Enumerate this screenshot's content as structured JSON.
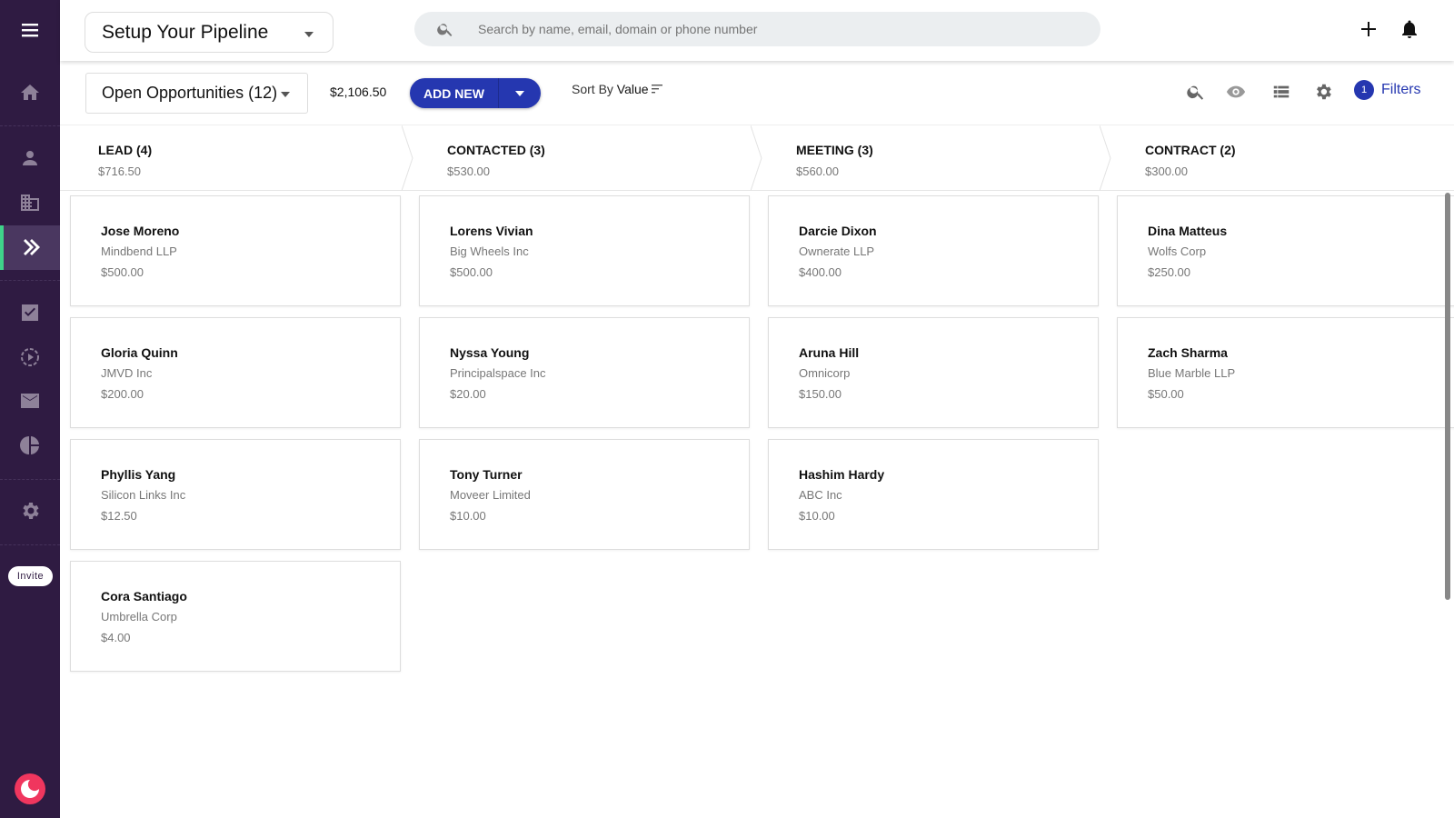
{
  "sidebar": {
    "items": [
      "menu-icon",
      "home-icon",
      "person-icon",
      "building-icon",
      "pipeline-icon",
      "tasks-icon",
      "activity-icon",
      "mail-icon",
      "reports-icon",
      "settings-icon"
    ],
    "active": "pipeline",
    "invite_label": "Invite",
    "accent": "#3fd38a",
    "bg": "#2f1b42"
  },
  "topbar": {
    "pipeline_select": "Setup Your Pipeline",
    "search_placeholder": "Search by name, email, domain or phone number"
  },
  "toolbar": {
    "view_select": "Open Opportunities (12)",
    "total": "$2,106.50",
    "add_new": "ADD NEW",
    "sort_prefix": "Sort By",
    "sort_value": "Value",
    "filter_count": "1",
    "filters_label": "Filters",
    "accent": "#2537b0"
  },
  "columns": [
    {
      "title": "LEAD (4)",
      "total": "$716.50",
      "cards": [
        {
          "name": "Jose Moreno",
          "company": "Mindbend LLP",
          "amount": "$500.00"
        },
        {
          "name": "Gloria Quinn",
          "company": "JMVD Inc",
          "amount": "$200.00"
        },
        {
          "name": "Phyllis Yang",
          "company": "Silicon Links Inc",
          "amount": "$12.50"
        },
        {
          "name": "Cora Santiago",
          "company": "Umbrella Corp",
          "amount": "$4.00"
        }
      ]
    },
    {
      "title": "CONTACTED (3)",
      "total": "$530.00",
      "cards": [
        {
          "name": "Lorens Vivian",
          "company": "Big Wheels Inc",
          "amount": "$500.00"
        },
        {
          "name": "Nyssa Young",
          "company": "Principalspace Inc",
          "amount": "$20.00"
        },
        {
          "name": "Tony Turner",
          "company": "Moveer Limited",
          "amount": "$10.00"
        }
      ]
    },
    {
      "title": "MEETING (3)",
      "total": "$560.00",
      "cards": [
        {
          "name": "Darcie Dixon",
          "company": "Ownerate LLP",
          "amount": "$400.00"
        },
        {
          "name": "Aruna Hill",
          "company": "Omnicorp",
          "amount": "$150.00"
        },
        {
          "name": "Hashim Hardy",
          "company": "ABC Inc",
          "amount": "$10.00"
        }
      ]
    },
    {
      "title": "CONTRACT (2)",
      "total": "$300.00",
      "cards": [
        {
          "name": "Dina Matteus",
          "company": "Wolfs Corp",
          "amount": "$250.00"
        },
        {
          "name": "Zach Sharma",
          "company": "Blue Marble LLP",
          "amount": "$50.00"
        }
      ]
    }
  ]
}
